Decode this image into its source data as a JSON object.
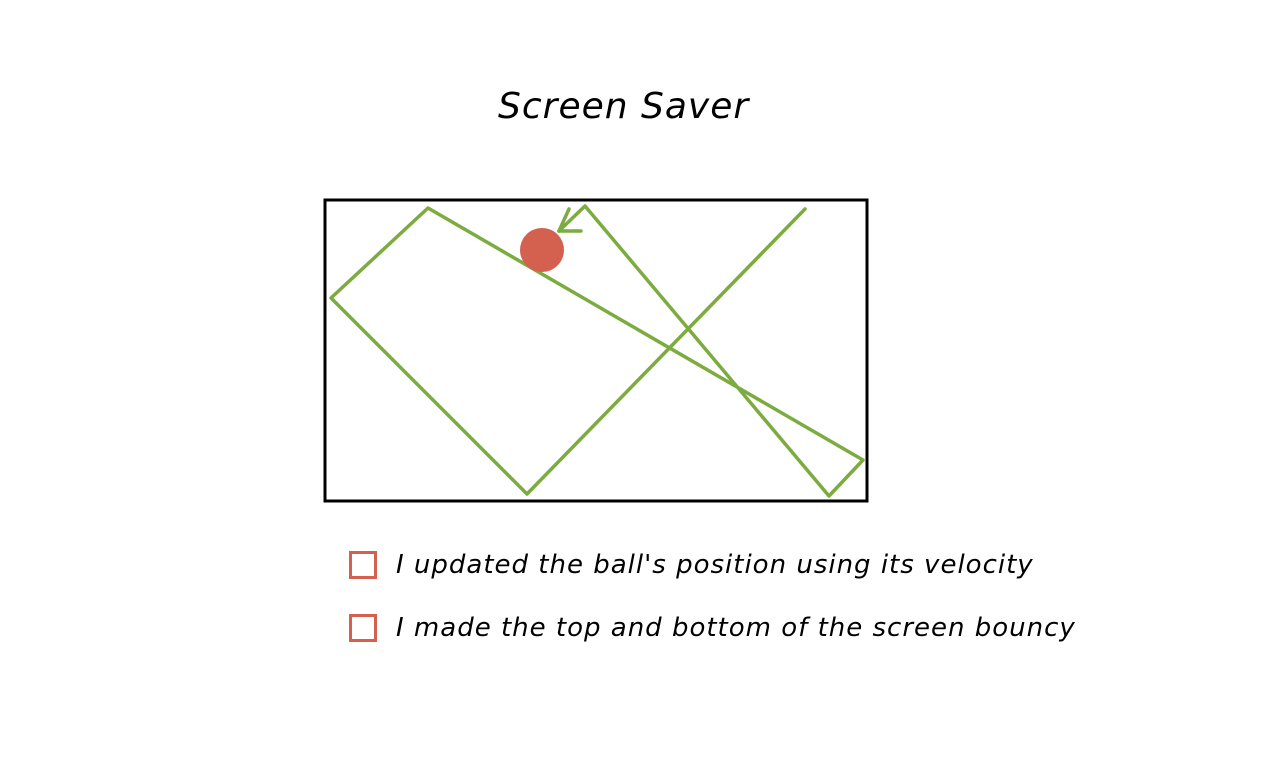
{
  "title": "Screen Saver",
  "diagram": {
    "ball_color": "#d46050",
    "path_color": "#7cab3f",
    "frame_color": "#000000"
  },
  "checklist": [
    {
      "label": "I updated the ball's position using its velocity",
      "checked": false
    },
    {
      "label": "I made the top and bottom of the screen bouncy",
      "checked": false
    }
  ],
  "colors": {
    "checkbox_border": "#d46050"
  }
}
